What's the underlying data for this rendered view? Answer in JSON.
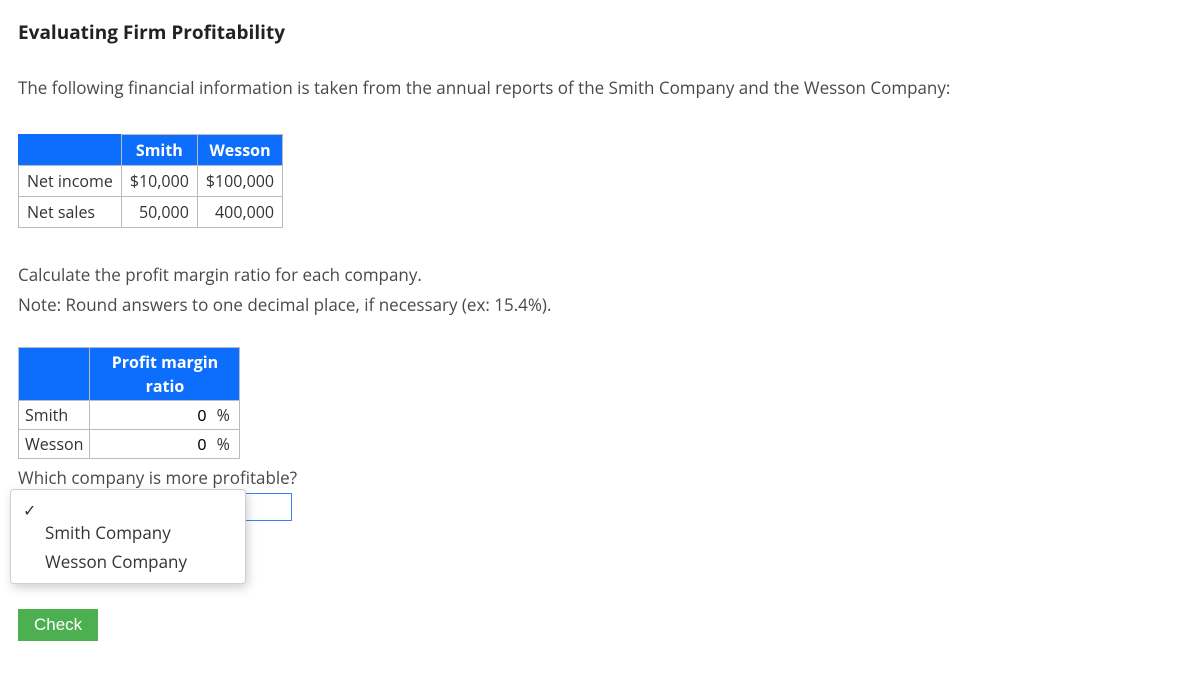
{
  "title": "Evaluating Firm Profitability",
  "intro": "The following financial information is taken from the annual reports of the Smith Company and the Wesson Company:",
  "data_table": {
    "headers": {
      "col1": "Smith",
      "col2": "Wesson"
    },
    "rows": [
      {
        "label": "Net income",
        "smith": "$10,000",
        "wesson": "$100,000"
      },
      {
        "label": "Net sales",
        "smith": "50,000",
        "wesson": "400,000"
      }
    ],
    "colors": {
      "header_bg": "#0d6efd",
      "header_fg": "#ffffff",
      "border": "#bbbbbb"
    }
  },
  "instructions": {
    "line1": "Calculate the profit margin ratio for each company.",
    "line2": "Note: Round answers to one decimal place, if necessary (ex: 15.4%)."
  },
  "answer_table": {
    "header": "Profit margin ratio",
    "rows": [
      {
        "label": "Smith",
        "value": "0",
        "unit": "%"
      },
      {
        "label": "Wesson",
        "value": "0",
        "unit": "%"
      }
    ]
  },
  "question": "Which company is more profitable?",
  "dropdown": {
    "selected": "",
    "options": [
      {
        "label": "",
        "checked": true
      },
      {
        "label": "Smith Company",
        "checked": false
      },
      {
        "label": "Wesson Company",
        "checked": false
      }
    ]
  },
  "check_button": "Check",
  "colors": {
    "accent_blue": "#0d6efd",
    "button_green": "#4caf50",
    "text": "#494949",
    "select_border": "#3b82f6"
  }
}
